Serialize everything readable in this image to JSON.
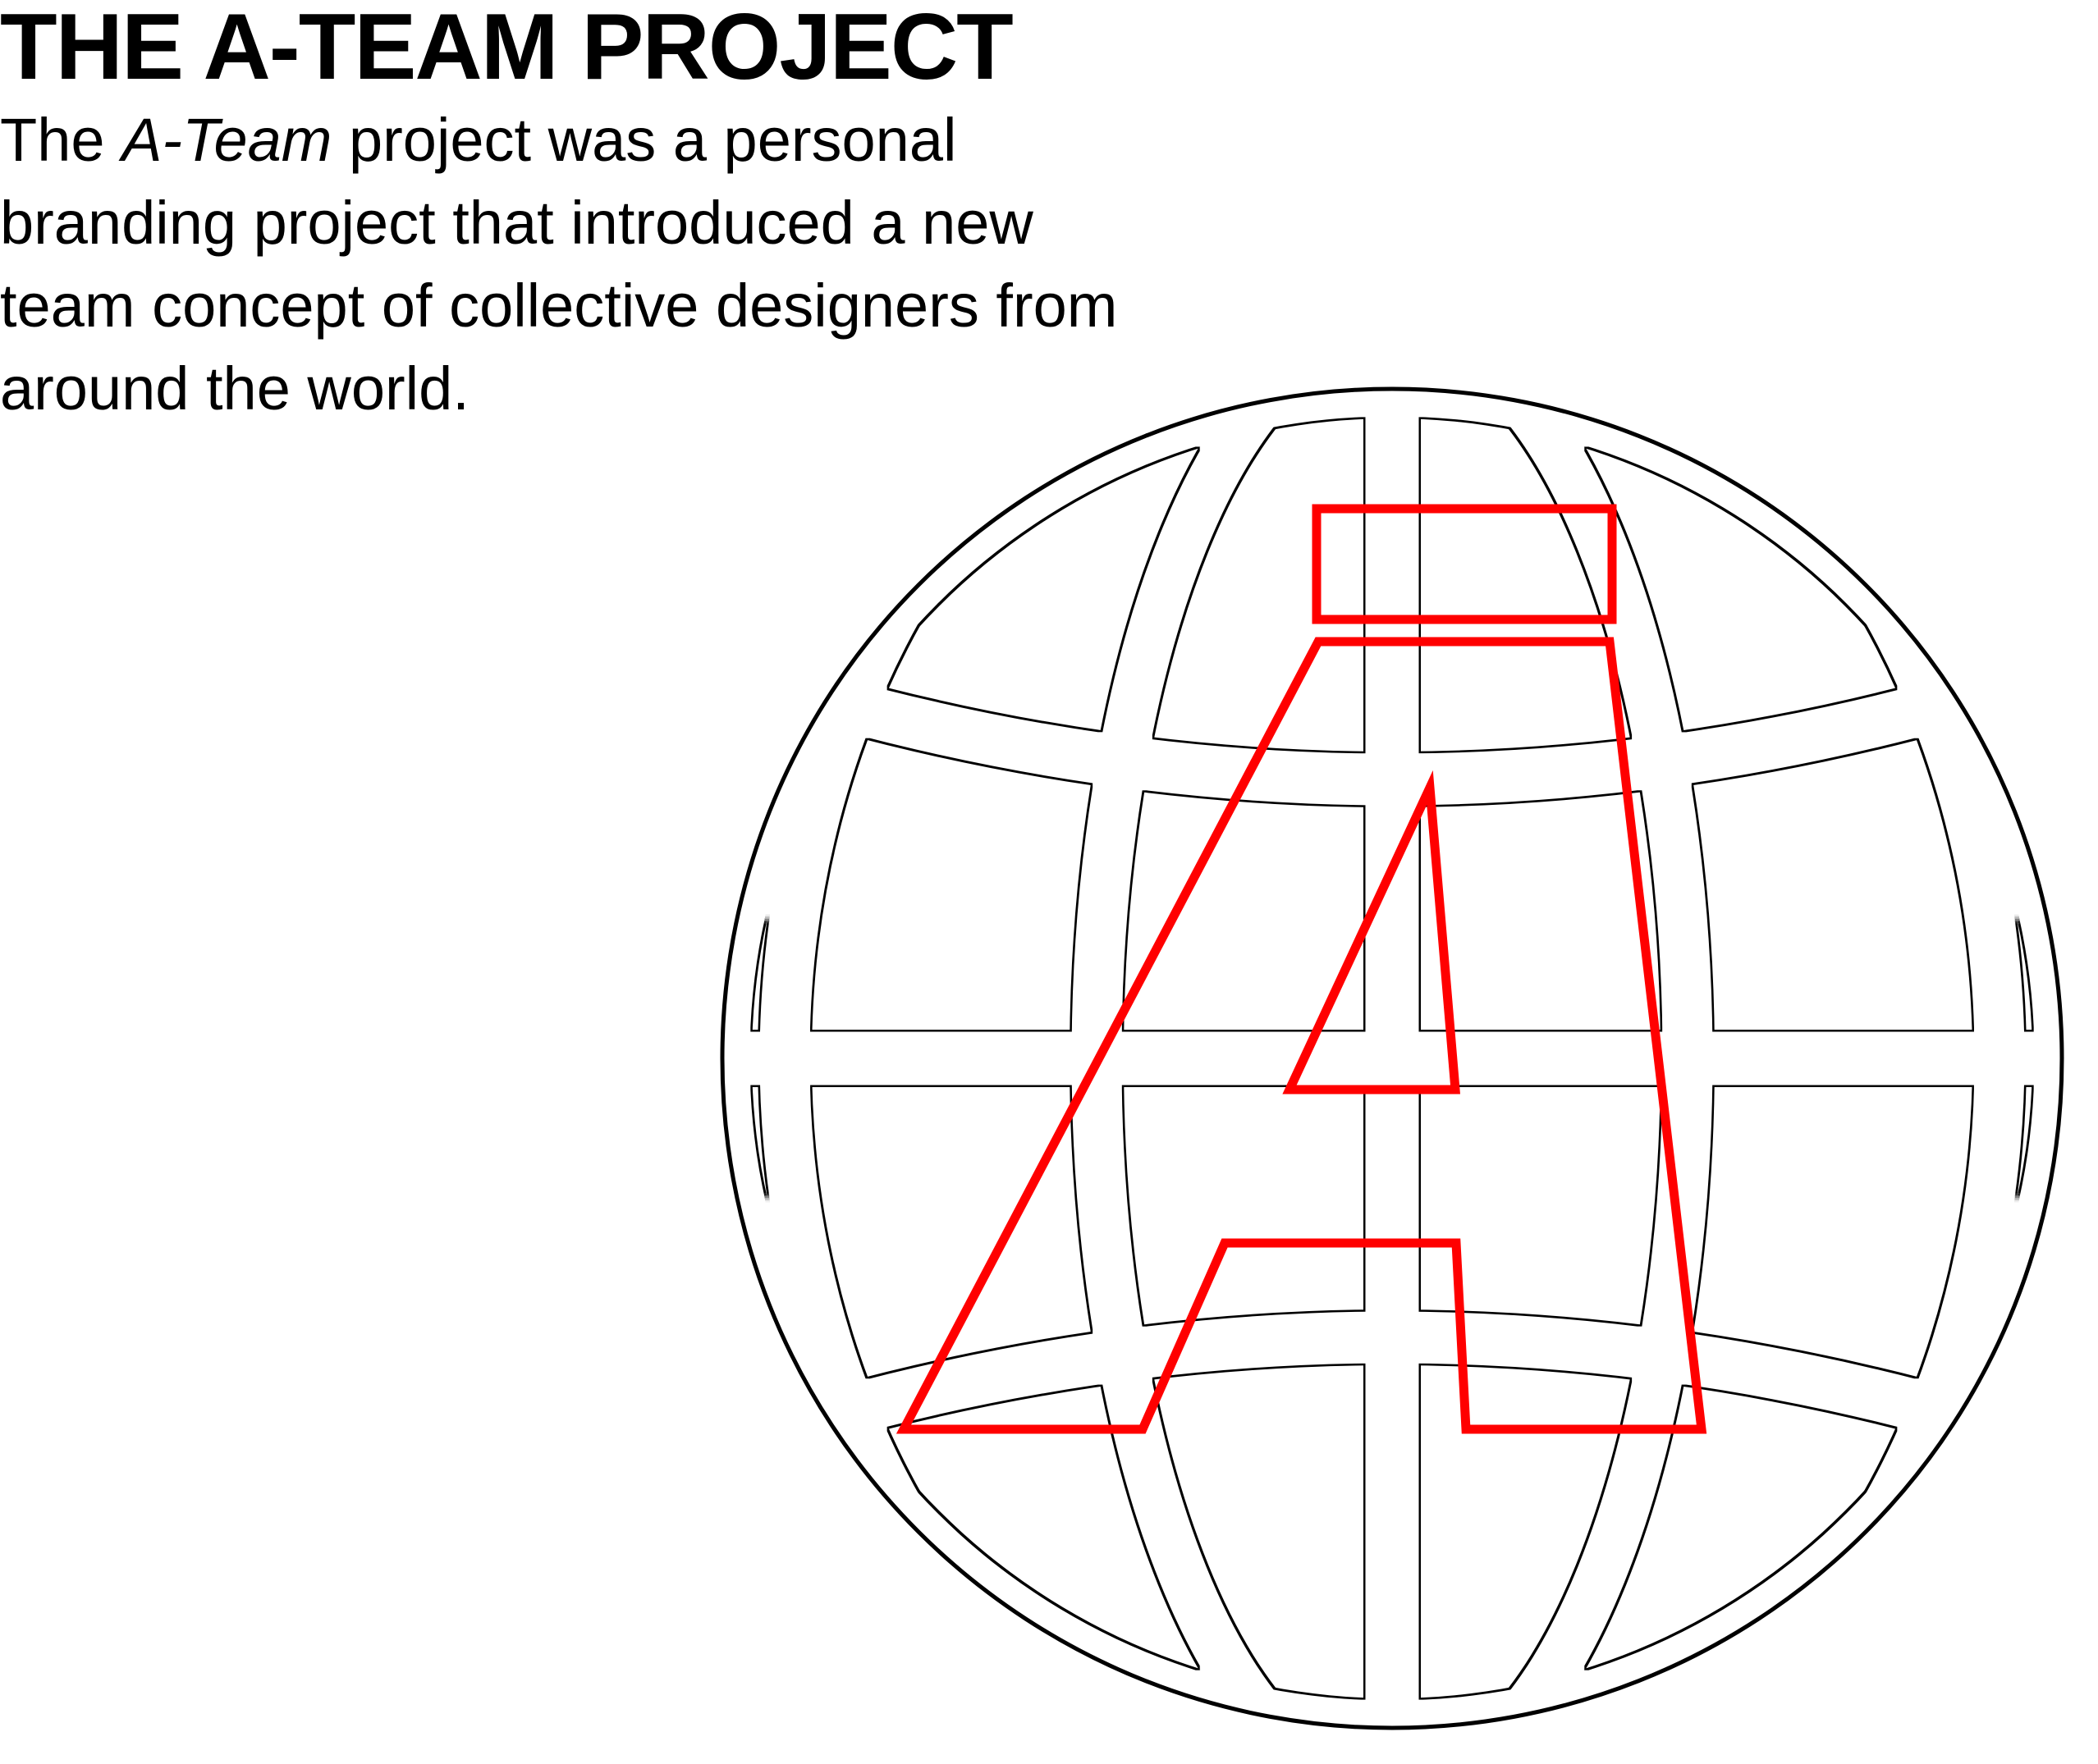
{
  "header": {
    "title": "THE A-TEAM PROJECT"
  },
  "description": {
    "lead": "The ",
    "emphasis": "A-Team",
    "rest": " project was a personal branding project that introduced a new team concept of collective designers from around the world."
  },
  "logo": {
    "globe_icon": "globe-outline-icon",
    "letter_icon": "letter-a-outline-icon",
    "globe_color": "#000000",
    "letter_color": "#ff0000"
  }
}
